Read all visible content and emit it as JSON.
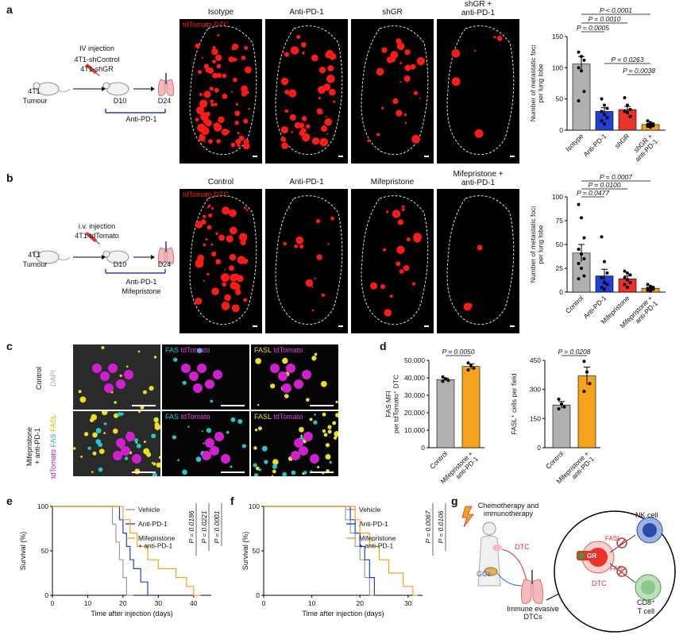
{
  "panels": {
    "a": {
      "label": "a",
      "schematic": {
        "injection": "IV injection",
        "line1": "4T1-shControl",
        "line2": "4T1-shGR",
        "tumour_a": "4T1",
        "tumour_b": "Tumour",
        "d10": "D10",
        "d24": "D24",
        "treatment": "Anti-PD-1"
      },
      "image_headers": [
        "Isotype",
        "Anti-PD-1",
        "shGR",
        "shGR +\nanti-PD-1"
      ],
      "image_overlay": "tdTomato",
      "image_overlay2": "DTC"
    },
    "b": {
      "label": "b",
      "schematic": {
        "injection": "i.v. injection",
        "line1": "4T1-tdTomato",
        "tumour_a": "4T1",
        "tumour_b": "Tumour",
        "d10": "D10",
        "d24": "D24",
        "treatment1": "Anti-PD-1",
        "treatment2": "Mifepristone"
      },
      "image_headers": [
        "Control",
        "Anti-PD-1",
        "Mifepristone",
        "Mifepristone +\nanti-PD-1"
      ],
      "image_overlay": "tdTomato",
      "image_overlay2": "DTC"
    },
    "c": {
      "label": "c",
      "row_labels": [
        "Control",
        "Mifepristone\n+ anti-PD-1"
      ],
      "channel_label": [
        "tdTomato",
        "FAS",
        "FASL",
        "DAPI"
      ],
      "col_labels": [
        [
          "FAS",
          "tdTomato"
        ],
        [
          "FASL",
          "tdTomato"
        ]
      ]
    },
    "d": {
      "label": "d"
    },
    "e": {
      "label": "e"
    },
    "f": {
      "label": "f"
    },
    "g": {
      "label": "g",
      "top": "Chemotherapy and\nimmunotherapy",
      "dtc": "DTC",
      "gcs": "GCs",
      "evasive": "Immune evasive\nDTCs",
      "nk": "NK cell",
      "fasl": "FASL",
      "fas": "FAS",
      "gr": "GR",
      "dtc2": "DTC",
      "cd8": "CD8⁺\nT cell"
    }
  },
  "chart_data": [
    {
      "id": "a-bar",
      "type": "bar",
      "categories": [
        "Isotype",
        "Anti-PD-1",
        "shGR",
        "shGR +\nanti-PD-1"
      ],
      "values": [
        106,
        30,
        33,
        9
      ],
      "errors": [
        12,
        6,
        5,
        2
      ],
      "colors": [
        "#b0b0b0",
        "#1f3fd6",
        "#e8322a",
        "#f5a21c"
      ],
      "points": [
        [
          125,
          118,
          112,
          100,
          95,
          62,
          47
        ],
        [
          50,
          40,
          35,
          30,
          25,
          20,
          15,
          10
        ],
        [
          52,
          40,
          33,
          30,
          28,
          22
        ],
        [
          15,
          12,
          10,
          9,
          8,
          7,
          6,
          5
        ]
      ],
      "ylabel": "Number of metastatic foci\nper lung lobe",
      "ylim": [
        0,
        150
      ],
      "yticks": [
        0,
        50,
        100,
        150
      ],
      "brackets": [
        {
          "from": 0,
          "to": 3,
          "label": "P < 0.0001"
        },
        {
          "from": 0,
          "to": 2,
          "label": "P = 0.0010"
        },
        {
          "from": 0,
          "to": 1,
          "label": "P = 0.0005"
        },
        {
          "from": 1,
          "to": 3,
          "label": "P = 0.0263"
        },
        {
          "from": 2,
          "to": 3,
          "label": "P = 0.0038"
        }
      ]
    },
    {
      "id": "b-bar",
      "type": "bar",
      "categories": [
        "Control",
        "Anti-PD-1",
        "Mifepristone",
        "Mifepristone +\nanti-PD-1"
      ],
      "values": [
        41,
        17,
        14,
        4
      ],
      "errors": [
        9,
        7,
        3,
        1
      ],
      "colors": [
        "#b0b0b0",
        "#1f3fd6",
        "#e8322a",
        "#f5a21c"
      ],
      "points": [
        [
          92,
          78,
          57,
          45,
          40,
          35,
          30,
          25,
          17,
          14
        ],
        [
          58,
          32,
          20,
          15,
          10,
          8,
          5,
          3
        ],
        [
          22,
          20,
          18,
          15,
          13,
          10,
          8,
          5
        ],
        [
          8,
          6,
          5,
          4,
          4,
          3,
          2,
          1
        ]
      ],
      "ylabel": "Number of metastatic foci\nper lung lobe",
      "ylim": [
        0,
        100
      ],
      "yticks": [
        0,
        25,
        50,
        75,
        100
      ],
      "brackets": [
        {
          "from": 0,
          "to": 3,
          "label": "P = 0.0007"
        },
        {
          "from": 0,
          "to": 2,
          "label": "P = 0.0100"
        },
        {
          "from": 0,
          "to": 1,
          "label": "P = 0.0477"
        }
      ]
    },
    {
      "id": "d-fas",
      "type": "bar",
      "categories": [
        "Control",
        "Mifepristone +\nanti-PD-1"
      ],
      "values": [
        39000,
        46500
      ],
      "errors": [
        800,
        1500
      ],
      "colors": [
        "#b0b0b0",
        "#f5a21c"
      ],
      "points": [
        [
          40500,
          39500,
          38500,
          38000
        ],
        [
          48500,
          47000,
          45500,
          44500
        ]
      ],
      "ylabel": "FAS MFI\nper tdTomato⁺ DTC",
      "ylim": [
        0,
        50000
      ],
      "yticks": [
        0,
        10000,
        20000,
        30000,
        40000,
        50000
      ],
      "ytick_labels": [
        "0",
        "10,000",
        "20,000",
        "30,000",
        "40,000",
        "50,000"
      ],
      "brackets": [
        {
          "from": 0,
          "to": 1,
          "label": "P = 0.0050"
        }
      ]
    },
    {
      "id": "d-fasl",
      "type": "bar",
      "categories": [
        "Control",
        "Mifepristone +\nanti-PD-1"
      ],
      "values": [
        220,
        370
      ],
      "errors": [
        18,
        45
      ],
      "colors": [
        "#b0b0b0",
        "#f5a21c"
      ],
      "points": [
        [
          250,
          225,
          210,
          200
        ],
        [
          445,
          390,
          330,
          290
        ]
      ],
      "ylabel": "FASL⁺ cells per field",
      "ylim": [
        0,
        450
      ],
      "yticks": [
        0,
        150,
        300,
        450
      ],
      "brackets": [
        {
          "from": 0,
          "to": 1,
          "label": "P = 0.0208"
        }
      ]
    },
    {
      "id": "e-surv",
      "type": "line",
      "xlabel": "Time after injection (days)",
      "ylabel": "Survival (%)",
      "xlim": [
        0,
        45
      ],
      "ylim": [
        0,
        100
      ],
      "xticks": [
        0,
        10,
        20,
        30,
        40
      ],
      "yticks": [
        0,
        50,
        100
      ],
      "series": [
        {
          "name": "Vehicle",
          "color": "#9a9a9a",
          "x": [
            0,
            17,
            17,
            18,
            18,
            19,
            19,
            20,
            20,
            21,
            21,
            23
          ],
          "y": [
            100,
            100,
            80,
            80,
            60,
            60,
            40,
            40,
            20,
            20,
            0,
            0
          ]
        },
        {
          "name": "Anti-PD-1",
          "color": "#1f3fd6",
          "x": [
            0,
            19,
            19,
            20,
            20,
            21,
            21,
            22,
            22,
            23,
            23,
            25,
            25,
            27,
            27,
            28
          ],
          "y": [
            100,
            100,
            85,
            85,
            70,
            70,
            55,
            55,
            40,
            40,
            30,
            30,
            15,
            15,
            0,
            0
          ]
        },
        {
          "name": "Mifepristone\n+ anti-PD-1",
          "color": "#f5a21c",
          "x": [
            0,
            20,
            20,
            22,
            22,
            24,
            24,
            27,
            27,
            30,
            30,
            35,
            35,
            38,
            38,
            40,
            40,
            42
          ],
          "y": [
            100,
            100,
            85,
            85,
            70,
            70,
            55,
            55,
            40,
            40,
            30,
            30,
            20,
            20,
            10,
            10,
            0,
            0
          ]
        }
      ],
      "pvalues": [
        "P = 0.0186",
        "P = 0.0221",
        "P = 0.0001"
      ]
    },
    {
      "id": "f-surv",
      "type": "line",
      "xlabel": "Time after injection (days)",
      "ylabel": "Survival (%)",
      "xlim": [
        0,
        33
      ],
      "ylim": [
        0,
        100
      ],
      "xticks": [
        0,
        10,
        20,
        30
      ],
      "yticks": [
        0,
        50,
        100
      ],
      "series": [
        {
          "name": "Vehicle",
          "color": "#9a9a9a",
          "x": [
            0,
            17,
            17,
            18,
            18,
            19,
            19,
            20,
            20,
            21,
            21,
            22,
            22,
            23
          ],
          "y": [
            100,
            100,
            85,
            85,
            70,
            70,
            55,
            55,
            40,
            40,
            20,
            20,
            0,
            0
          ]
        },
        {
          "name": "Anti-PD-1",
          "color": "#1f3fd6",
          "x": [
            0,
            18,
            18,
            19,
            19,
            20,
            20,
            21,
            21,
            22,
            22,
            23,
            23,
            24
          ],
          "y": [
            100,
            100,
            85,
            85,
            70,
            70,
            55,
            55,
            40,
            40,
            20,
            20,
            0,
            0
          ]
        },
        {
          "name": "Mifepristone\n+ anti-PD-1",
          "color": "#f5a21c",
          "x": [
            0,
            19,
            19,
            20,
            20,
            22,
            22,
            24,
            24,
            26,
            26,
            29,
            29,
            31,
            31,
            32
          ],
          "y": [
            100,
            100,
            85,
            85,
            70,
            70,
            55,
            55,
            40,
            40,
            25,
            25,
            10,
            10,
            0,
            0
          ]
        }
      ],
      "pvalues": [
        "P = 0.0067",
        "P = 0.0106"
      ]
    }
  ]
}
